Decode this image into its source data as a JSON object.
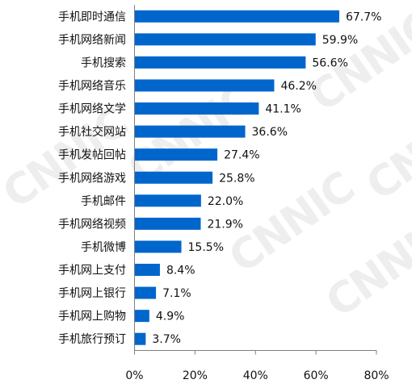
{
  "chart_data": {
    "type": "bar",
    "orientation": "horizontal",
    "categories": [
      "手机即时通信",
      "手机网络新闻",
      "手机搜索",
      "手机网络音乐",
      "手机网络文学",
      "手机社交网站",
      "手机发帖回帖",
      "手机网络游戏",
      "手机邮件",
      "手机网络视频",
      "手机微博",
      "手机网上支付",
      "手机网上银行",
      "手机网上购物",
      "手机旅行预订"
    ],
    "values": [
      67.7,
      59.9,
      56.6,
      46.2,
      41.1,
      36.6,
      27.4,
      25.8,
      22.0,
      21.9,
      15.5,
      8.4,
      7.1,
      4.9,
      3.7
    ],
    "value_labels": [
      "67.7%",
      "59.9%",
      "56.6%",
      "46.2%",
      "41.1%",
      "36.6%",
      "27.4%",
      "25.8%",
      "22.0%",
      "21.9%",
      "15.5%",
      "8.4%",
      "7.1%",
      "4.9%",
      "3.7%"
    ],
    "xlim": [
      0,
      80
    ],
    "xticks": [
      0,
      20,
      40,
      60,
      80
    ],
    "xtick_labels": [
      "0%",
      "20%",
      "40%",
      "60%",
      "80%"
    ],
    "bar_color": "#0066CC",
    "grid": false,
    "legend": "none"
  },
  "watermark": {
    "text": "CNNIC",
    "color": "#d9d9d9"
  }
}
